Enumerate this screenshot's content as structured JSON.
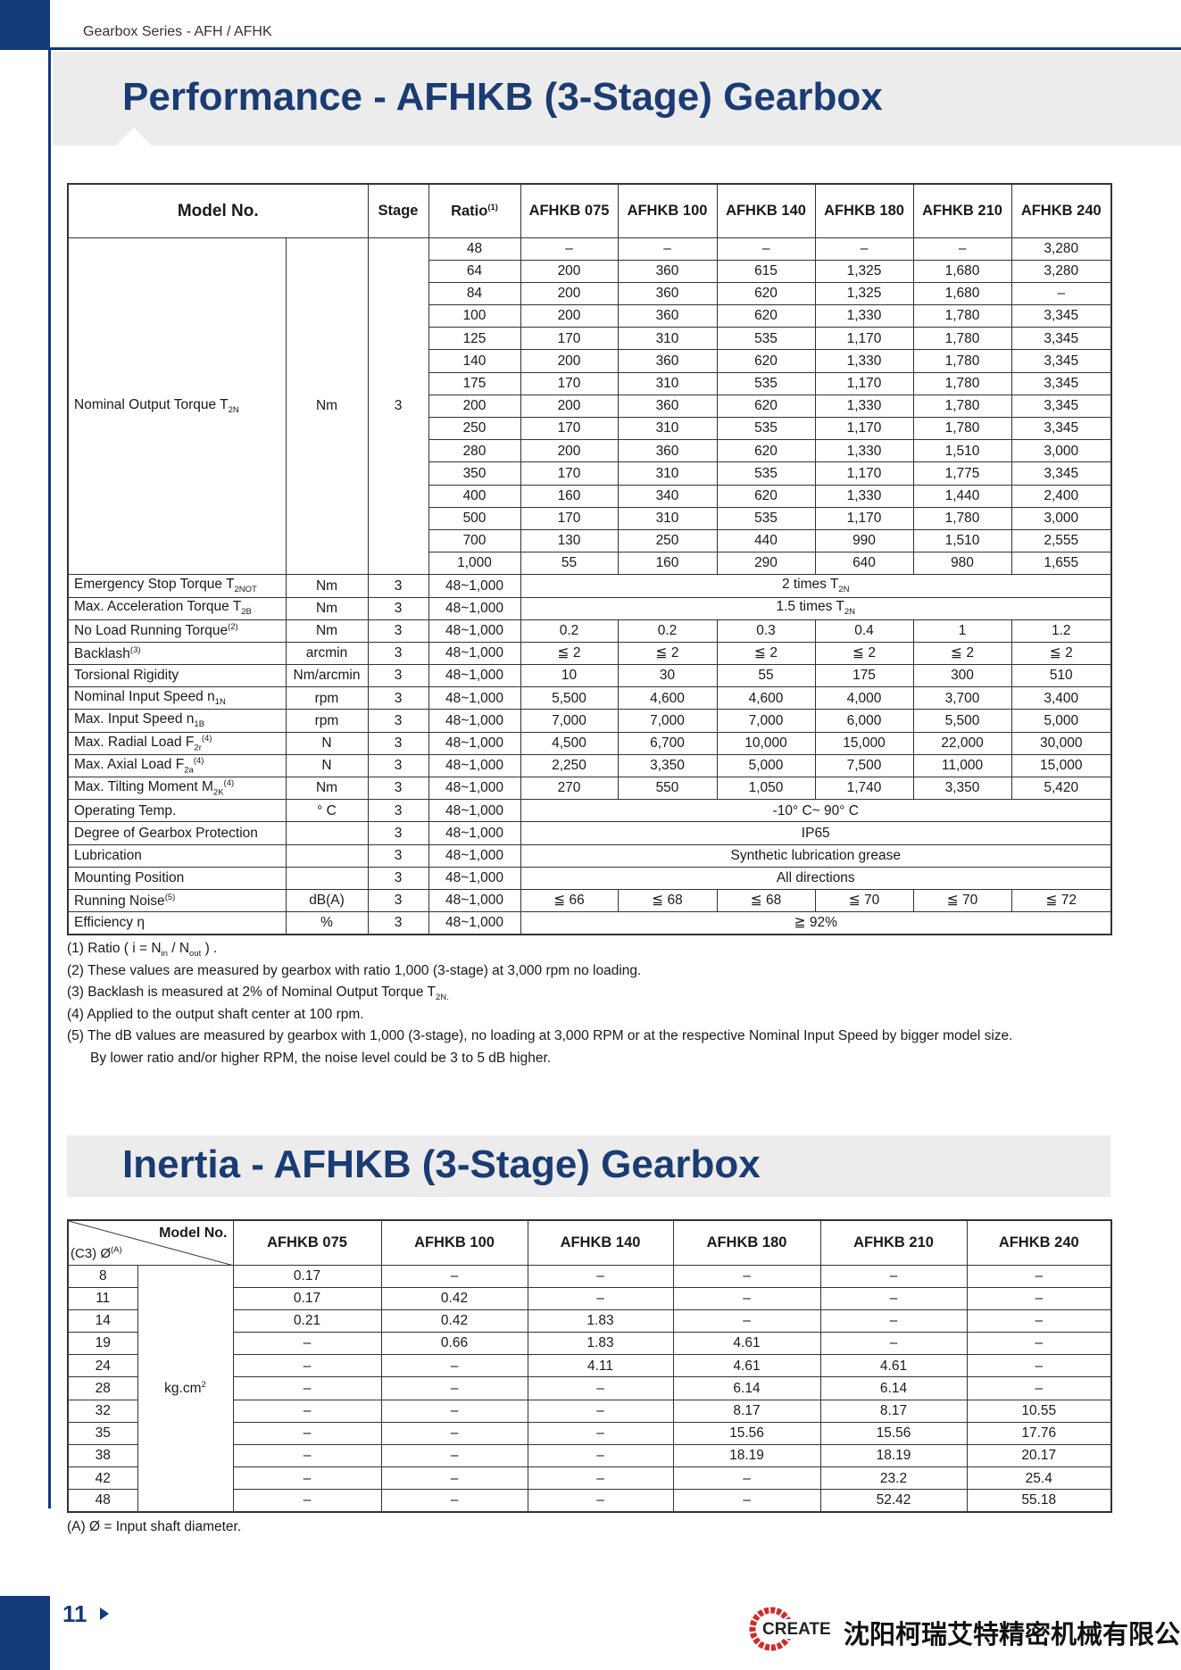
{
  "header": {
    "series": "Gearbox Series - AFH / AFHK"
  },
  "performance": {
    "title": "Performance - AFHKB (3-Stage) Gearbox",
    "columns": [
      "Model No.",
      "Stage",
      [
        "Ratio",
        {
          "sup": "(1)"
        }
      ],
      "AFHKB 075",
      "AFHKB 100",
      "AFHKB 140",
      "AFHKB 180",
      "AFHKB 210",
      "AFHKB 240"
    ],
    "torque": {
      "label": [
        "Nominal Output Torque T",
        {
          "sub": "2N"
        }
      ],
      "unit": "Nm",
      "stage": "3",
      "rows": [
        [
          "48",
          "–",
          "–",
          "–",
          "–",
          "–",
          "3,280"
        ],
        [
          "64",
          "200",
          "360",
          "615",
          "1,325",
          "1,680",
          "3,280"
        ],
        [
          "84",
          "200",
          "360",
          "620",
          "1,325",
          "1,680",
          "–"
        ],
        [
          "100",
          "200",
          "360",
          "620",
          "1,330",
          "1,780",
          "3,345"
        ],
        [
          "125",
          "170",
          "310",
          "535",
          "1,170",
          "1,780",
          "3,345"
        ],
        [
          "140",
          "200",
          "360",
          "620",
          "1,330",
          "1,780",
          "3,345"
        ],
        [
          "175",
          "170",
          "310",
          "535",
          "1,170",
          "1,780",
          "3,345"
        ],
        [
          "200",
          "200",
          "360",
          "620",
          "1,330",
          "1,780",
          "3,345"
        ],
        [
          "250",
          "170",
          "310",
          "535",
          "1,170",
          "1,780",
          "3,345"
        ],
        [
          "280",
          "200",
          "360",
          "620",
          "1,330",
          "1,510",
          "3,000"
        ],
        [
          "350",
          "170",
          "310",
          "535",
          "1,170",
          "1,775",
          "3,345"
        ],
        [
          "400",
          "160",
          "340",
          "620",
          "1,330",
          "1,440",
          "2,400"
        ],
        [
          "500",
          "170",
          "310",
          "535",
          "1,170",
          "1,780",
          "3,000"
        ],
        [
          "700",
          "130",
          "250",
          "440",
          "990",
          "1,510",
          "2,555"
        ],
        [
          "1,000",
          "55",
          "160",
          "290",
          "640",
          "980",
          "1,655"
        ]
      ]
    },
    "rows": [
      {
        "label": [
          "Emergency Stop Torque T",
          {
            "sub": "2NOT"
          }
        ],
        "unit": "Nm",
        "stage": "3",
        "ratio": "48~1,000",
        "all": [
          "2 times T",
          {
            "sub": "2N"
          }
        ]
      },
      {
        "label": [
          "Max. Acceleration Torque T",
          {
            "sub": "2B"
          }
        ],
        "unit": "Nm",
        "stage": "3",
        "ratio": "48~1,000",
        "all": [
          "1.5 times T",
          {
            "sub": "2N"
          }
        ]
      },
      {
        "label": [
          "No Load Running Torque",
          {
            "sup": "(2)"
          }
        ],
        "unit": "Nm",
        "stage": "3",
        "ratio": "48~1,000",
        "values": [
          "0.2",
          "0.2",
          "0.3",
          "0.4",
          "1",
          "1.2"
        ]
      },
      {
        "label": [
          "Backlash",
          {
            "sup": "(3)"
          }
        ],
        "unit": "arcmin",
        "stage": "3",
        "ratio": "48~1,000",
        "values": [
          "≦ 2",
          "≦ 2",
          "≦ 2",
          "≦ 2",
          "≦ 2",
          "≦ 2"
        ]
      },
      {
        "label": "Torsional Rigidity",
        "unit": "Nm/arcmin",
        "stage": "3",
        "ratio": "48~1,000",
        "values": [
          "10",
          "30",
          "55",
          "175",
          "300",
          "510"
        ]
      },
      {
        "label": [
          "Nominal Input Speed n",
          {
            "sub": "1N"
          }
        ],
        "unit": "rpm",
        "stage": "3",
        "ratio": "48~1,000",
        "values": [
          "5,500",
          "4,600",
          "4,600",
          "4,000",
          "3,700",
          "3,400"
        ]
      },
      {
        "label": [
          "Max. Input Speed n",
          {
            "sub": "1B"
          }
        ],
        "unit": "rpm",
        "stage": "3",
        "ratio": "48~1,000",
        "values": [
          "7,000",
          "7,000",
          "7,000",
          "6,000",
          "5,500",
          "5,000"
        ]
      },
      {
        "label": [
          "Max. Radial Load F",
          {
            "sub": "2r"
          },
          {
            "sup": "(4)"
          }
        ],
        "unit": "N",
        "stage": "3",
        "ratio": "48~1,000",
        "values": [
          "4,500",
          "6,700",
          "10,000",
          "15,000",
          "22,000",
          "30,000"
        ]
      },
      {
        "label": [
          "Max. Axial Load F",
          {
            "sub": "2a"
          },
          {
            "sup": "(4)"
          }
        ],
        "unit": "N",
        "stage": "3",
        "ratio": "48~1,000",
        "values": [
          "2,250",
          "3,350",
          "5,000",
          "7,500",
          "11,000",
          "15,000"
        ]
      },
      {
        "label": [
          "Max. Tilting Moment M",
          {
            "sub": "2K"
          },
          {
            "sup": "(4)"
          }
        ],
        "unit": "Nm",
        "stage": "3",
        "ratio": "48~1,000",
        "values": [
          "270",
          "550",
          "1,050",
          "1,740",
          "3,350",
          "5,420"
        ]
      },
      {
        "label": "Operating Temp.",
        "unit": "° C",
        "stage": "3",
        "ratio": "48~1,000",
        "all": "-10° C~ 90° C"
      },
      {
        "label": "Degree of Gearbox Protection",
        "stage": "3",
        "ratio": "48~1,000",
        "all": "IP65"
      },
      {
        "label": "Lubrication",
        "stage": "3",
        "ratio": "48~1,000",
        "all": "Synthetic lubrication grease"
      },
      {
        "label": "Mounting Position",
        "stage": "3",
        "ratio": "48~1,000",
        "all": "All directions"
      },
      {
        "label": [
          "Running Noise",
          {
            "sup": "(5)"
          }
        ],
        "unit": "dB(A)",
        "stage": "3",
        "ratio": "48~1,000",
        "values": [
          "≦ 66",
          "≦ 68",
          "≦ 68",
          "≦ 70",
          "≦ 70",
          "≦ 72"
        ]
      },
      {
        "label": "Efficiency η",
        "unit": "%",
        "stage": "3",
        "ratio": "48~1,000",
        "all": "≧ 92%"
      }
    ],
    "notes": [
      [
        "(1) Ratio ( i = N",
        {
          "sub": "in"
        },
        " / N",
        {
          "sub": "out"
        },
        " ) ."
      ],
      "(2) These values are measured by gearbox with ratio 1,000 (3-stage) at 3,000 rpm no loading.",
      [
        "(3) Backlash is measured at 2% of Nominal Output Torque T",
        {
          "sub": "2N."
        }
      ],
      "(4) Applied to the output shaft center at 100 rpm.",
      "(5) The dB values are measured by gearbox with 1,000 (3-stage), no loading at 3,000 RPM or at the respective Nominal Input Speed by bigger model size.",
      "By lower ratio and/or higher RPM, the noise level could be 3 to 5 dB higher."
    ]
  },
  "inertia": {
    "title": "Inertia - AFHKB (3-Stage) Gearbox",
    "corner_top": "Model No.",
    "corner_bottom": [
      "(C3) Ø",
      {
        "sup": "(A)"
      }
    ],
    "columns": [
      "AFHKB 075",
      "AFHKB 100",
      "AFHKB 140",
      "AFHKB 180",
      "AFHKB 210",
      "AFHKB 240"
    ],
    "unit": [
      "kg.cm",
      {
        "sup": "2"
      }
    ],
    "rows": [
      [
        "8",
        "0.17",
        "–",
        "–",
        "–",
        "–",
        "–"
      ],
      [
        "11",
        "0.17",
        "0.42",
        "–",
        "–",
        "–",
        "–"
      ],
      [
        "14",
        "0.21",
        "0.42",
        "1.83",
        "–",
        "–",
        "–"
      ],
      [
        "19",
        "–",
        "0.66",
        "1.83",
        "4.61",
        "–",
        "–"
      ],
      [
        "24",
        "–",
        "–",
        "4.11",
        "4.61",
        "4.61",
        "–"
      ],
      [
        "28",
        "–",
        "–",
        "–",
        "6.14",
        "6.14",
        "–"
      ],
      [
        "32",
        "–",
        "–",
        "–",
        "8.17",
        "8.17",
        "10.55"
      ],
      [
        "35",
        "–",
        "–",
        "–",
        "15.56",
        "15.56",
        "17.76"
      ],
      [
        "38",
        "–",
        "–",
        "–",
        "18.19",
        "18.19",
        "20.17"
      ],
      [
        "42",
        "–",
        "–",
        "–",
        "–",
        "23.2",
        "25.4"
      ],
      [
        "48",
        "–",
        "–",
        "–",
        "–",
        "52.42",
        "55.18"
      ]
    ],
    "note": "(A)  Ø = Input shaft diameter."
  },
  "footer": {
    "page": "11",
    "logo": "CREATE",
    "company": "沈阳柯瑞艾特精密机械有限公司"
  }
}
